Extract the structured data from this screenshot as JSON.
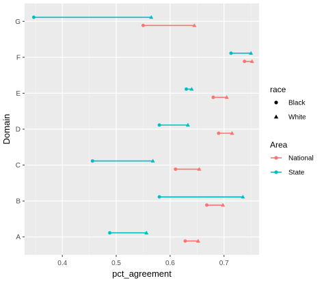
{
  "chart_data": {
    "type": "dumbbell",
    "xlabel": "pct_agreement",
    "ylabel": "Domain",
    "xlim": [
      0.33,
      0.765
    ],
    "x_ticks": [
      "0.4",
      "0.5",
      "0.6",
      "0.7"
    ],
    "x_tick_values": [
      0.4,
      0.5,
      0.6,
      0.7
    ],
    "categories": [
      "A",
      "B",
      "C",
      "D",
      "E",
      "F",
      "G"
    ],
    "grid": true,
    "legend_position": "right",
    "legends": [
      {
        "title": "race",
        "entries": [
          {
            "label": "Black",
            "shape": "circle"
          },
          {
            "label": "White",
            "shape": "triangle"
          }
        ]
      },
      {
        "title": "Area",
        "entries": [
          {
            "label": "National",
            "color": "#F8766D"
          },
          {
            "label": "State",
            "color": "#00BFC4"
          }
        ]
      }
    ],
    "series": [
      {
        "name": "National",
        "color": "#F8766D",
        "rows": [
          {
            "domain": "A",
            "black": 0.628,
            "white": 0.652
          },
          {
            "domain": "B",
            "black": 0.668,
            "white": 0.698
          },
          {
            "domain": "C",
            "black": 0.61,
            "white": 0.654
          },
          {
            "domain": "D",
            "black": 0.69,
            "white": 0.715
          },
          {
            "domain": "E",
            "black": 0.68,
            "white": 0.705
          },
          {
            "domain": "F",
            "black": 0.738,
            "white": 0.752
          },
          {
            "domain": "G",
            "black": 0.55,
            "white": 0.645
          }
        ]
      },
      {
        "name": "State",
        "color": "#00BFC4",
        "rows": [
          {
            "domain": "A",
            "black": 0.488,
            "white": 0.556
          },
          {
            "domain": "B",
            "black": 0.58,
            "white": 0.735
          },
          {
            "domain": "C",
            "black": 0.456,
            "white": 0.568
          },
          {
            "domain": "D",
            "black": 0.58,
            "white": 0.633
          },
          {
            "domain": "E",
            "black": 0.63,
            "white": 0.64
          },
          {
            "domain": "F",
            "black": 0.713,
            "white": 0.75
          },
          {
            "domain": "G",
            "black": 0.347,
            "white": 0.565
          }
        ]
      }
    ]
  }
}
